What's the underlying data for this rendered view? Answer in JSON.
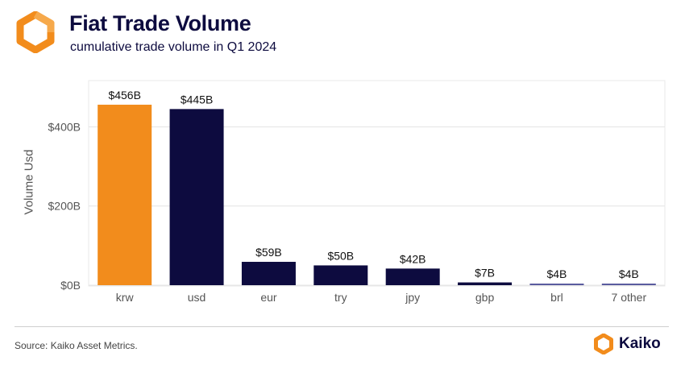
{
  "header": {
    "title": "Fiat Trade Volume",
    "subtitle": "cumulative trade volume in Q1 2024"
  },
  "footer": {
    "source": "Source: Kaiko Asset Metrics.",
    "brand": "Kaiko"
  },
  "colors": {
    "accent": "#f28c1c",
    "bar": "#0d0b3f",
    "brl_bar": "#5a5b9e",
    "grid": "#e4e4e4",
    "text": "#0d0b3f"
  },
  "chart_data": {
    "type": "bar",
    "title": "Fiat Trade Volume",
    "subtitle": "cumulative trade volume in Q1 2024",
    "xlabel": "",
    "ylabel": "Volume Usd",
    "categories": [
      "krw",
      "usd",
      "eur",
      "try",
      "jpy",
      "gbp",
      "brl",
      "7 other"
    ],
    "values": [
      456,
      445,
      59,
      50,
      42,
      7,
      4,
      4
    ],
    "labels": [
      "$456B",
      "$445B",
      "$59B",
      "$50B",
      "$42B",
      "$7B",
      "$4B",
      "$4B"
    ],
    "unit": "B USD",
    "ylim": [
      0,
      460
    ],
    "yticks": [
      0,
      200,
      400
    ],
    "ytick_labels": [
      "$0B",
      "$200B",
      "$400B"
    ],
    "highlight_category": "krw",
    "grid": true,
    "legend": "none"
  }
}
